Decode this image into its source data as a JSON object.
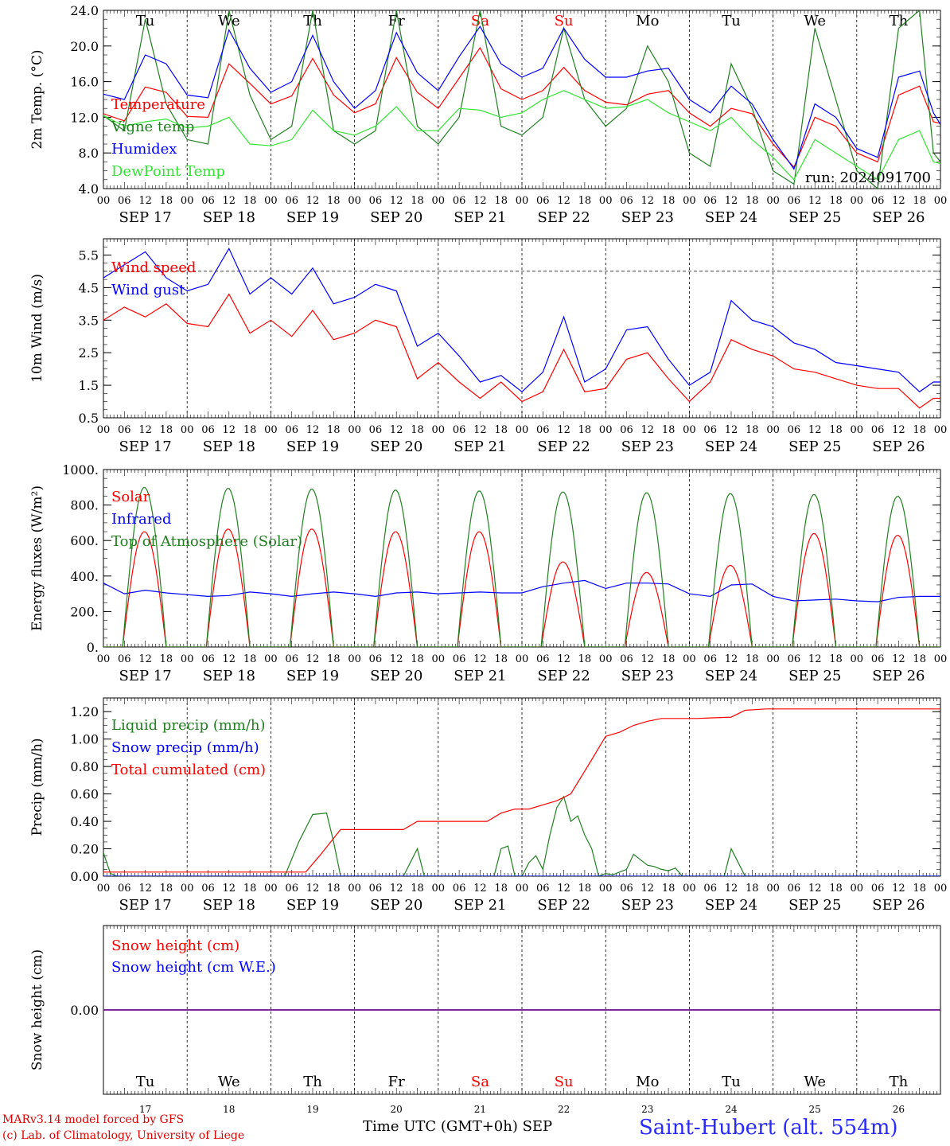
{
  "colors": {
    "red": "#ff0000",
    "green": "#208020",
    "blue": "#0000ff",
    "light_green": "#32e632",
    "gray": "#555555",
    "purple": "#7a2a9a",
    "label_blue": "#2a2aff",
    "credit_red": "#e00000"
  },
  "hour_tick_labels": [
    "00",
    "06",
    "12",
    "18"
  ],
  "final_hour_tick_label": "00",
  "date_labels": [
    "SEP 17",
    "SEP 18",
    "SEP 19",
    "SEP 20",
    "SEP 21",
    "SEP 22",
    "SEP 23",
    "SEP 24",
    "SEP 25",
    "SEP 26"
  ],
  "day_names": [
    "Tu",
    "We",
    "Th",
    "Fr",
    "Sa",
    "Su",
    "Mo",
    "Tu",
    "We",
    "Th"
  ],
  "day_name_colors": [
    "#000000",
    "#000000",
    "#000000",
    "#000000",
    "#ff0000",
    "#ff0000",
    "#000000",
    "#000000",
    "#000000",
    "#000000"
  ],
  "day_numbers": [
    "17",
    "18",
    "19",
    "20",
    "21",
    "22",
    "23",
    "24",
    "25",
    "26"
  ],
  "footer": {
    "credit_line1": "MARv3.14 model forced by GFS",
    "credit_line2": "(c) Lab. of Climatology, University of Liege",
    "x_axis_label": "Time UTC (GMT+0h) SEP",
    "station": "Saint-Hubert (alt. 554m)"
  },
  "chart_data": [
    {
      "type": "line",
      "ylabel": "2m Temp. (°C)",
      "ylim": [
        4,
        24
      ],
      "yticks": [
        4,
        8,
        12,
        16,
        20,
        24
      ],
      "ytick_labels": [
        "4.0",
        "8.0",
        "12.0",
        "16.0",
        "20.0",
        "24.0"
      ],
      "xlim_hours": [
        0,
        240
      ],
      "annotation": "run: 2024091700",
      "series": [
        {
          "name": "Temperature",
          "color": "#ff0000",
          "x": [
            0,
            6,
            12,
            18,
            24,
            30,
            36,
            42,
            48,
            54,
            60,
            66,
            72,
            78,
            84,
            90,
            96,
            102,
            108,
            114,
            120,
            126,
            132,
            138,
            144,
            150,
            156,
            162,
            168,
            174,
            180,
            186,
            192,
            198,
            204,
            210,
            216,
            222,
            228,
            234,
            238,
            240
          ],
          "y": [
            12.4,
            11.6,
            15.4,
            14.8,
            12.1,
            12.0,
            18.0,
            15.8,
            13.5,
            14.4,
            18.6,
            14.5,
            12.5,
            13.5,
            18.7,
            14.8,
            13.0,
            16.4,
            19.8,
            15.2,
            14.0,
            15.0,
            17.6,
            15.0,
            13.7,
            13.4,
            14.6,
            15.0,
            12.5,
            11.0,
            13.0,
            12.4,
            9.0,
            6.4,
            12.0,
            11.0,
            8.0,
            7.0,
            14.5,
            15.5,
            11.5,
            11.3
          ]
        },
        {
          "name": "Vigne temp",
          "color": "#208020",
          "x": [
            0,
            6,
            12,
            18,
            24,
            30,
            36,
            42,
            48,
            54,
            60,
            66,
            72,
            78,
            84,
            90,
            96,
            102,
            108,
            114,
            120,
            126,
            132,
            138,
            144,
            150,
            156,
            162,
            168,
            174,
            180,
            186,
            192,
            198,
            204,
            210,
            216,
            222,
            228,
            234,
            238,
            240
          ],
          "y": [
            12.2,
            10.5,
            23.0,
            13.5,
            9.5,
            9.0,
            24.0,
            14.5,
            9.5,
            11.0,
            24.0,
            10.5,
            9.0,
            10.5,
            24.0,
            11.0,
            9.0,
            12.0,
            24.0,
            11.0,
            10.0,
            12.0,
            22.0,
            14.0,
            11.0,
            13.0,
            20.0,
            16.0,
            8.0,
            6.5,
            18.0,
            13.0,
            6.0,
            4.5,
            22.0,
            14.0,
            6.0,
            4.0,
            22.0,
            24.0,
            8.0,
            7.0
          ]
        },
        {
          "name": "Humidex",
          "color": "#0000ff",
          "x": [
            0,
            6,
            12,
            18,
            24,
            30,
            36,
            42,
            48,
            54,
            60,
            66,
            72,
            78,
            84,
            90,
            96,
            102,
            108,
            114,
            120,
            126,
            132,
            138,
            144,
            150,
            156,
            162,
            168,
            174,
            180,
            186,
            192,
            198,
            204,
            210,
            216,
            222,
            228,
            234,
            238,
            240
          ],
          "y": [
            14.6,
            14.0,
            19.0,
            18.0,
            14.5,
            14.2,
            21.8,
            17.5,
            14.8,
            16.0,
            21.2,
            16.0,
            13.0,
            15.0,
            21.5,
            17.0,
            15.0,
            18.8,
            22.2,
            18.0,
            16.5,
            17.5,
            22.0,
            18.5,
            16.5,
            16.5,
            17.2,
            17.5,
            14.0,
            12.5,
            15.5,
            13.5,
            9.5,
            6.2,
            13.5,
            12.0,
            8.5,
            7.5,
            16.5,
            17.2,
            12.5,
            11.2
          ]
        },
        {
          "name": "DewPoint Temp",
          "color": "#32e632",
          "x": [
            0,
            6,
            12,
            18,
            24,
            30,
            36,
            42,
            48,
            54,
            60,
            66,
            72,
            78,
            84,
            90,
            96,
            102,
            108,
            114,
            120,
            126,
            132,
            138,
            144,
            150,
            156,
            162,
            168,
            174,
            180,
            186,
            192,
            198,
            204,
            210,
            216,
            222,
            228,
            234,
            238,
            240
          ],
          "y": [
            12.2,
            11.0,
            11.5,
            11.8,
            10.8,
            11.0,
            12.0,
            9.0,
            8.8,
            9.5,
            12.8,
            10.5,
            10.0,
            11.0,
            13.2,
            10.5,
            10.5,
            13.0,
            12.8,
            12.0,
            12.5,
            14.0,
            15.0,
            14.0,
            13.0,
            13.2,
            14.0,
            12.5,
            11.5,
            10.5,
            12.0,
            9.5,
            7.5,
            5.0,
            9.5,
            8.0,
            6.5,
            5.0,
            9.5,
            10.5,
            7.0,
            6.8
          ]
        }
      ]
    },
    {
      "type": "line",
      "ylabel": "10m Wind (m/s)",
      "ylim": [
        0.5,
        6
      ],
      "yticks": [
        0.5,
        1.5,
        2.5,
        3.5,
        4.5,
        5.5
      ],
      "ytick_labels": [
        "0.5",
        "1.5",
        "2.5",
        "3.5",
        "4.5",
        "5.5"
      ],
      "reference_line": 5.0,
      "xlim_hours": [
        0,
        240
      ],
      "series": [
        {
          "name": "Wind speed",
          "color": "#ff0000",
          "x": [
            0,
            6,
            12,
            18,
            24,
            30,
            36,
            42,
            48,
            54,
            60,
            66,
            72,
            78,
            84,
            90,
            96,
            102,
            108,
            114,
            120,
            126,
            132,
            138,
            144,
            150,
            156,
            162,
            168,
            174,
            180,
            186,
            192,
            198,
            204,
            210,
            216,
            222,
            228,
            234,
            238,
            240
          ],
          "y": [
            3.5,
            3.9,
            3.6,
            4.0,
            3.4,
            3.3,
            4.3,
            3.1,
            3.5,
            3.0,
            3.8,
            2.9,
            3.1,
            3.5,
            3.3,
            1.7,
            2.2,
            1.6,
            1.1,
            1.6,
            1.0,
            1.3,
            2.6,
            1.3,
            1.4,
            2.3,
            2.5,
            1.7,
            1.0,
            1.6,
            2.9,
            2.6,
            2.4,
            2.0,
            1.9,
            1.7,
            1.5,
            1.4,
            1.4,
            0.8,
            1.1,
            1.1
          ]
        },
        {
          "name": "Wind gust",
          "color": "#0000ff",
          "x": [
            0,
            6,
            12,
            18,
            24,
            30,
            36,
            42,
            48,
            54,
            60,
            66,
            72,
            78,
            84,
            90,
            96,
            102,
            108,
            114,
            120,
            126,
            132,
            138,
            144,
            150,
            156,
            162,
            168,
            174,
            180,
            186,
            192,
            198,
            204,
            210,
            216,
            222,
            228,
            234,
            238,
            240
          ],
          "y": [
            4.8,
            5.2,
            5.6,
            4.8,
            4.4,
            4.6,
            5.7,
            4.3,
            4.8,
            4.3,
            5.1,
            4.0,
            4.2,
            4.6,
            4.4,
            2.7,
            3.1,
            2.4,
            1.6,
            1.8,
            1.3,
            1.9,
            3.6,
            1.6,
            2.0,
            3.2,
            3.3,
            2.3,
            1.5,
            1.9,
            4.1,
            3.5,
            3.3,
            2.8,
            2.6,
            2.2,
            2.1,
            2.0,
            1.9,
            1.3,
            1.6,
            1.6
          ]
        }
      ]
    },
    {
      "type": "line",
      "ylabel": "Energy fluxes (W/m²)",
      "ylim": [
        0,
        1000
      ],
      "yticks": [
        0,
        200,
        400,
        600,
        800,
        1000
      ],
      "ytick_labels": [
        "0.",
        "200.",
        "400.",
        "600.",
        "800.",
        "1000."
      ],
      "xlim_hours": [
        0,
        240
      ],
      "daily_cycles": {
        "top_of_atmosphere_peaks": [
          900,
          895,
          890,
          885,
          880,
          875,
          870,
          865,
          860,
          850
        ],
        "solar_peaks": [
          650,
          665,
          665,
          650,
          650,
          480,
          420,
          460,
          640,
          630
        ],
        "sunrise_hour": 5.5,
        "sunset_hour": 18.0
      },
      "series": [
        {
          "name": "Solar",
          "color": "#ff0000"
        },
        {
          "name": "Infrared",
          "color": "#0000ff",
          "x": [
            0,
            6,
            12,
            18,
            24,
            30,
            36,
            42,
            48,
            54,
            60,
            66,
            72,
            78,
            84,
            90,
            96,
            102,
            108,
            114,
            120,
            126,
            132,
            138,
            144,
            150,
            156,
            162,
            168,
            174,
            180,
            186,
            192,
            198,
            204,
            210,
            216,
            222,
            228,
            234,
            238,
            240
          ],
          "y": [
            360,
            300,
            320,
            305,
            295,
            285,
            290,
            310,
            300,
            285,
            300,
            310,
            300,
            285,
            305,
            310,
            300,
            305,
            310,
            305,
            305,
            340,
            360,
            375,
            330,
            360,
            360,
            355,
            300,
            285,
            350,
            355,
            285,
            260,
            265,
            270,
            260,
            255,
            280,
            285,
            285,
            285
          ]
        },
        {
          "name": "Top of Atmosphere (Solar)",
          "color": "#208020"
        }
      ]
    },
    {
      "type": "line",
      "ylabel": "Precip (mm/h)",
      "ylim": [
        0,
        1.3
      ],
      "yticks": [
        0,
        0.2,
        0.4,
        0.6,
        0.8,
        1.0,
        1.2
      ],
      "ytick_labels": [
        "0.00",
        "0.20",
        "0.40",
        "0.60",
        "0.80",
        "1.00",
        "1.20"
      ],
      "xlim_hours": [
        0,
        240
      ],
      "series": [
        {
          "name": "Liquid precip (mm/h)",
          "color": "#208020",
          "x": [
            0,
            2,
            4,
            52,
            56,
            60,
            64,
            66,
            68,
            70,
            86,
            88,
            90,
            92,
            112,
            114,
            116,
            118,
            120,
            122,
            124,
            126,
            128,
            130,
            132,
            134,
            136,
            138,
            140,
            142,
            144,
            146,
            148,
            150,
            152,
            154,
            156,
            158,
            160,
            162,
            164,
            166,
            178,
            180,
            182,
            184,
            240
          ],
          "y": [
            0.17,
            0.02,
            0,
            0,
            0.25,
            0.45,
            0.46,
            0.25,
            0,
            0,
            0,
            0.1,
            0.2,
            0,
            0,
            0.2,
            0.22,
            0,
            0,
            0.1,
            0.15,
            0.05,
            0.3,
            0.5,
            0.58,
            0.4,
            0.44,
            0.3,
            0.2,
            0,
            0.02,
            0.01,
            0.03,
            0.05,
            0.16,
            0.12,
            0.08,
            0.07,
            0.05,
            0.04,
            0.06,
            0,
            0,
            0.2,
            0.1,
            0,
            0
          ]
        },
        {
          "name": "Snow precip (mm/h)",
          "color": "#0000ff",
          "x": [
            0,
            240
          ],
          "y": [
            0,
            0
          ]
        },
        {
          "name": "Total cumulated (cm)",
          "color": "#ff0000",
          "x": [
            0,
            58,
            62,
            68,
            70,
            86,
            90,
            110,
            114,
            118,
            122,
            130,
            134,
            140,
            144,
            148,
            152,
            156,
            160,
            170,
            180,
            184,
            190,
            240
          ],
          "y": [
            0.03,
            0.03,
            0.15,
            0.34,
            0.34,
            0.34,
            0.4,
            0.4,
            0.46,
            0.49,
            0.49,
            0.55,
            0.6,
            0.85,
            1.02,
            1.05,
            1.1,
            1.13,
            1.15,
            1.15,
            1.16,
            1.21,
            1.22,
            1.22
          ]
        }
      ]
    },
    {
      "type": "line",
      "ylabel": "Snow height (cm)",
      "ylim": [
        -1,
        1
      ],
      "yticks": [
        0
      ],
      "ytick_labels": [
        "0.00"
      ],
      "xlim_hours": [
        0,
        240
      ],
      "series": [
        {
          "name": "Snow height (cm)",
          "color": "#ff0000",
          "x": [
            0,
            240
          ],
          "y": [
            0,
            0
          ]
        },
        {
          "name": "Snow height (cm W.E.)",
          "color": "#0000ff",
          "x": [
            0,
            240
          ],
          "y": [
            0,
            0
          ]
        }
      ]
    }
  ]
}
